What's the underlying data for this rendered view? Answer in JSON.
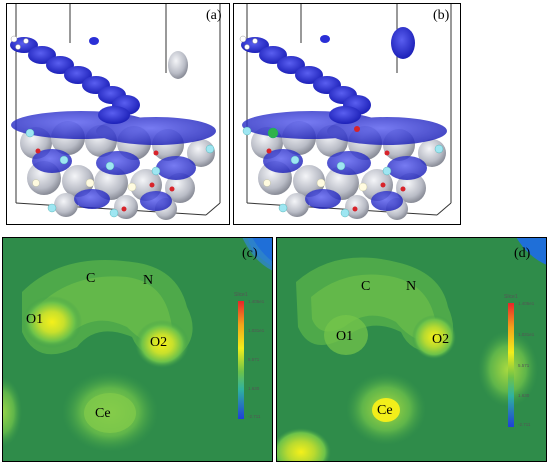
{
  "panels": [
    {
      "label": "(a)"
    },
    {
      "label": "(b)"
    },
    {
      "label": "(c)",
      "atoms": {
        "c": "C",
        "n": "N",
        "o1": "O1",
        "o2": "O2",
        "ce": "Ce"
      },
      "colorbar": {
        "title": "Slice1",
        "ticks": [
          "1.405e1",
          "1.031e1",
          "5.571",
          "1.630",
          "-2.711"
        ]
      }
    },
    {
      "label": "(d)",
      "atoms": {
        "c": "C",
        "n": "N",
        "o1": "O1",
        "o2": "O2",
        "ce": "Ce"
      },
      "colorbar": {
        "title": "Slice1",
        "ticks": [
          "1.405e1",
          "1.031e1",
          "5.571",
          "1.630",
          "-2.711"
        ]
      }
    }
  ],
  "colors": {
    "density_blue": "#2a2fd6",
    "isosurface_grey": "#c9cbd3",
    "contour_bg": "#2f8c4a",
    "contour_mid": "#6cc24a",
    "contour_peak": "#f2ee1a",
    "colorbar_top": "#e8242a",
    "colorbar_bottom": "#1f3fd8"
  }
}
